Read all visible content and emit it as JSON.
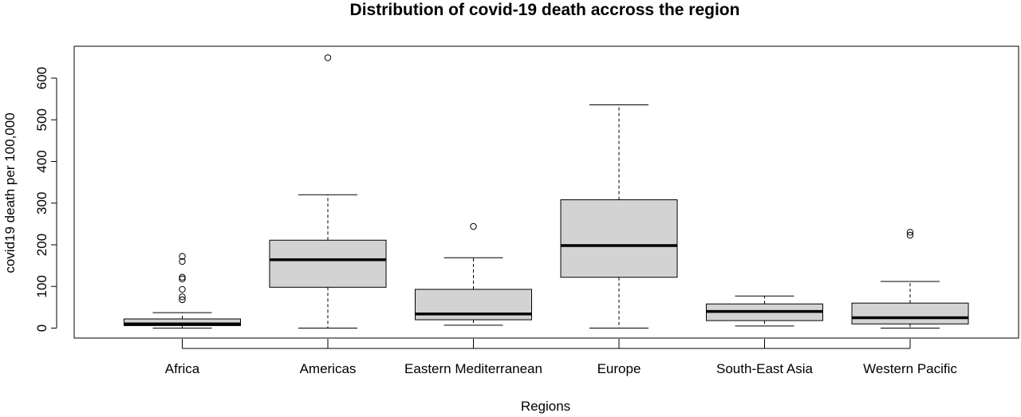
{
  "chart_data": {
    "type": "boxplot",
    "title": "Distribution of covid-19 death accross the region",
    "xlabel": "Regions",
    "ylabel": "covid19 death per 100,000",
    "ylim": [
      -25,
      675
    ],
    "yticks": [
      0,
      100,
      200,
      300,
      400,
      500,
      600
    ],
    "grid": false,
    "legend": "none",
    "colors": {
      "box_fill": "#d3d3d3",
      "stroke": "#000000"
    },
    "categories": [
      "Africa",
      "Americas",
      "Eastern Mediterranean",
      "Europe",
      "South-East Asia",
      "Western Pacific"
    ],
    "boxes": [
      {
        "category": "Africa",
        "whisker_low": 0,
        "q1": 6,
        "median": 10,
        "q3": 22,
        "whisker_high": 37,
        "outliers": [
          68,
          75,
          93,
          118,
          122,
          160,
          172
        ]
      },
      {
        "category": "Americas",
        "whisker_low": 0,
        "q1": 98,
        "median": 164,
        "q3": 211,
        "whisker_high": 320,
        "outliers": [
          649
        ]
      },
      {
        "category": "Eastern Mediterranean",
        "whisker_low": 7,
        "q1": 20,
        "median": 34,
        "q3": 93,
        "whisker_high": 169,
        "outliers": [
          244
        ]
      },
      {
        "category": "Europe",
        "whisker_low": 0,
        "q1": 122,
        "median": 198,
        "q3": 308,
        "whisker_high": 536,
        "outliers": []
      },
      {
        "category": "South-East Asia",
        "whisker_low": 5,
        "q1": 18,
        "median": 40,
        "q3": 58,
        "whisker_high": 77,
        "outliers": []
      },
      {
        "category": "Western Pacific",
        "whisker_low": 0,
        "q1": 10,
        "median": 25,
        "q3": 60,
        "whisker_high": 112,
        "outliers": [
          223,
          230
        ]
      }
    ]
  }
}
